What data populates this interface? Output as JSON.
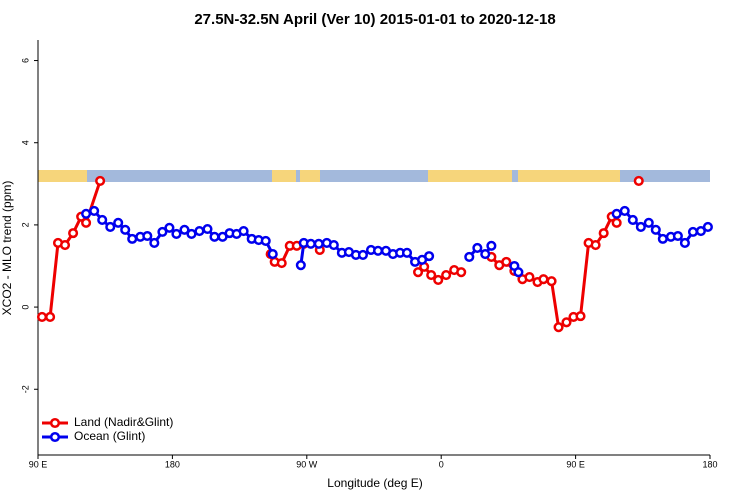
{
  "chart_data": {
    "type": "line",
    "title": "27.5N-32.5N April (Ver 10)   2015-01-01 to 2020-12-18",
    "x_label": "Longitude (deg E)",
    "y_label": "XCO2 - MLO trend (ppm)",
    "xlim": [
      90,
      540
    ],
    "ylim": [
      -3.6,
      6.5
    ],
    "xticks": [
      {
        "value": 90,
        "label": "90 E"
      },
      {
        "value": 180,
        "label": "180"
      },
      {
        "value": 270,
        "label": "90 W"
      },
      {
        "value": 360,
        "label": "0"
      },
      {
        "value": 450,
        "label": "90 E"
      },
      {
        "value": 540,
        "label": "180"
      }
    ],
    "yticks": [
      -2,
      0,
      2,
      4,
      6
    ],
    "legend": "bottom-left",
    "series": [
      {
        "name": "Land (Nadir&Glint)",
        "color": "#ee0000",
        "x": [
          92.7,
          98.1,
          103.4,
          108.1,
          113.5,
          118.9,
          122.2,
          131.6,
          null,
          245.8,
          248.5,
          253.2,
          258.6,
          263.3,
          268.0,
          null,
          278.7,
          null,
          344.5,
          348.6,
          353.3,
          358.0,
          363.3,
          368.7,
          373.4,
          null,
          393.6,
          398.9,
          403.6,
          409.0,
          414.4,
          419.1,
          424.5,
          428.5,
          433.9,
          438.6,
          443.9,
          448.6,
          453.3,
          458.7,
          463.4,
          468.8,
          474.2,
          477.5,
          null,
          492.3
        ],
        "values": [
          -0.24,
          -0.24,
          1.56,
          1.51,
          1.8,
          2.2,
          2.05,
          3.07,
          null,
          1.29,
          1.1,
          1.07,
          1.49,
          1.49,
          1.54,
          null,
          1.39,
          null,
          0.85,
          0.98,
          0.78,
          0.66,
          0.78,
          0.9,
          0.85,
          null,
          1.22,
          1.02,
          1.1,
          0.88,
          0.68,
          0.73,
          0.61,
          0.68,
          0.63,
          -0.49,
          -0.37,
          -0.24,
          -0.22,
          1.56,
          1.51,
          1.8,
          2.2,
          2.05,
          null,
          3.07
        ]
      },
      {
        "name": "Ocean (Glint)",
        "color": "#0000ee",
        "x": [
          122.2,
          127.6,
          133.0,
          138.4,
          143.7,
          148.4,
          153.1,
          158.5,
          163.2,
          167.9,
          173.3,
          178.0,
          182.7,
          188.1,
          192.8,
          198.1,
          203.5,
          208.2,
          213.6,
          218.3,
          223.0,
          227.7,
          233.1,
          237.8,
          242.5,
          247.2,
          null,
          266.0,
          268.0,
          272.7,
          278.0,
          283.4,
          288.1,
          293.5,
          298.2,
          302.9,
          307.6,
          313.0,
          317.7,
          323.0,
          327.7,
          332.5,
          337.1,
          342.5,
          347.2,
          351.9,
          null,
          378.8,
          384.2,
          389.5,
          393.6,
          null,
          409.0,
          411.7,
          null,
          477.5,
          482.9,
          488.3,
          493.7,
          499.0,
          503.7,
          508.4,
          513.8,
          518.5,
          523.2,
          528.6,
          533.9,
          538.6
        ],
        "values": [
          2.27,
          2.34,
          2.12,
          1.95,
          2.05,
          1.88,
          1.66,
          1.71,
          1.73,
          1.56,
          1.83,
          1.93,
          1.78,
          1.88,
          1.78,
          1.85,
          1.9,
          1.71,
          1.71,
          1.8,
          1.78,
          1.85,
          1.66,
          1.63,
          1.61,
          1.29,
          null,
          1.02,
          1.56,
          1.54,
          1.54,
          1.56,
          1.51,
          1.32,
          1.34,
          1.27,
          1.27,
          1.39,
          1.37,
          1.37,
          1.29,
          1.32,
          1.32,
          1.1,
          1.15,
          1.24,
          null,
          1.22,
          1.44,
          1.29,
          1.49,
          null,
          1.0,
          0.85,
          null,
          2.27,
          2.34,
          2.12,
          1.95,
          2.05,
          1.88,
          1.66,
          1.71,
          1.73,
          1.56,
          1.83,
          1.85,
          1.95
        ]
      }
    ]
  }
}
